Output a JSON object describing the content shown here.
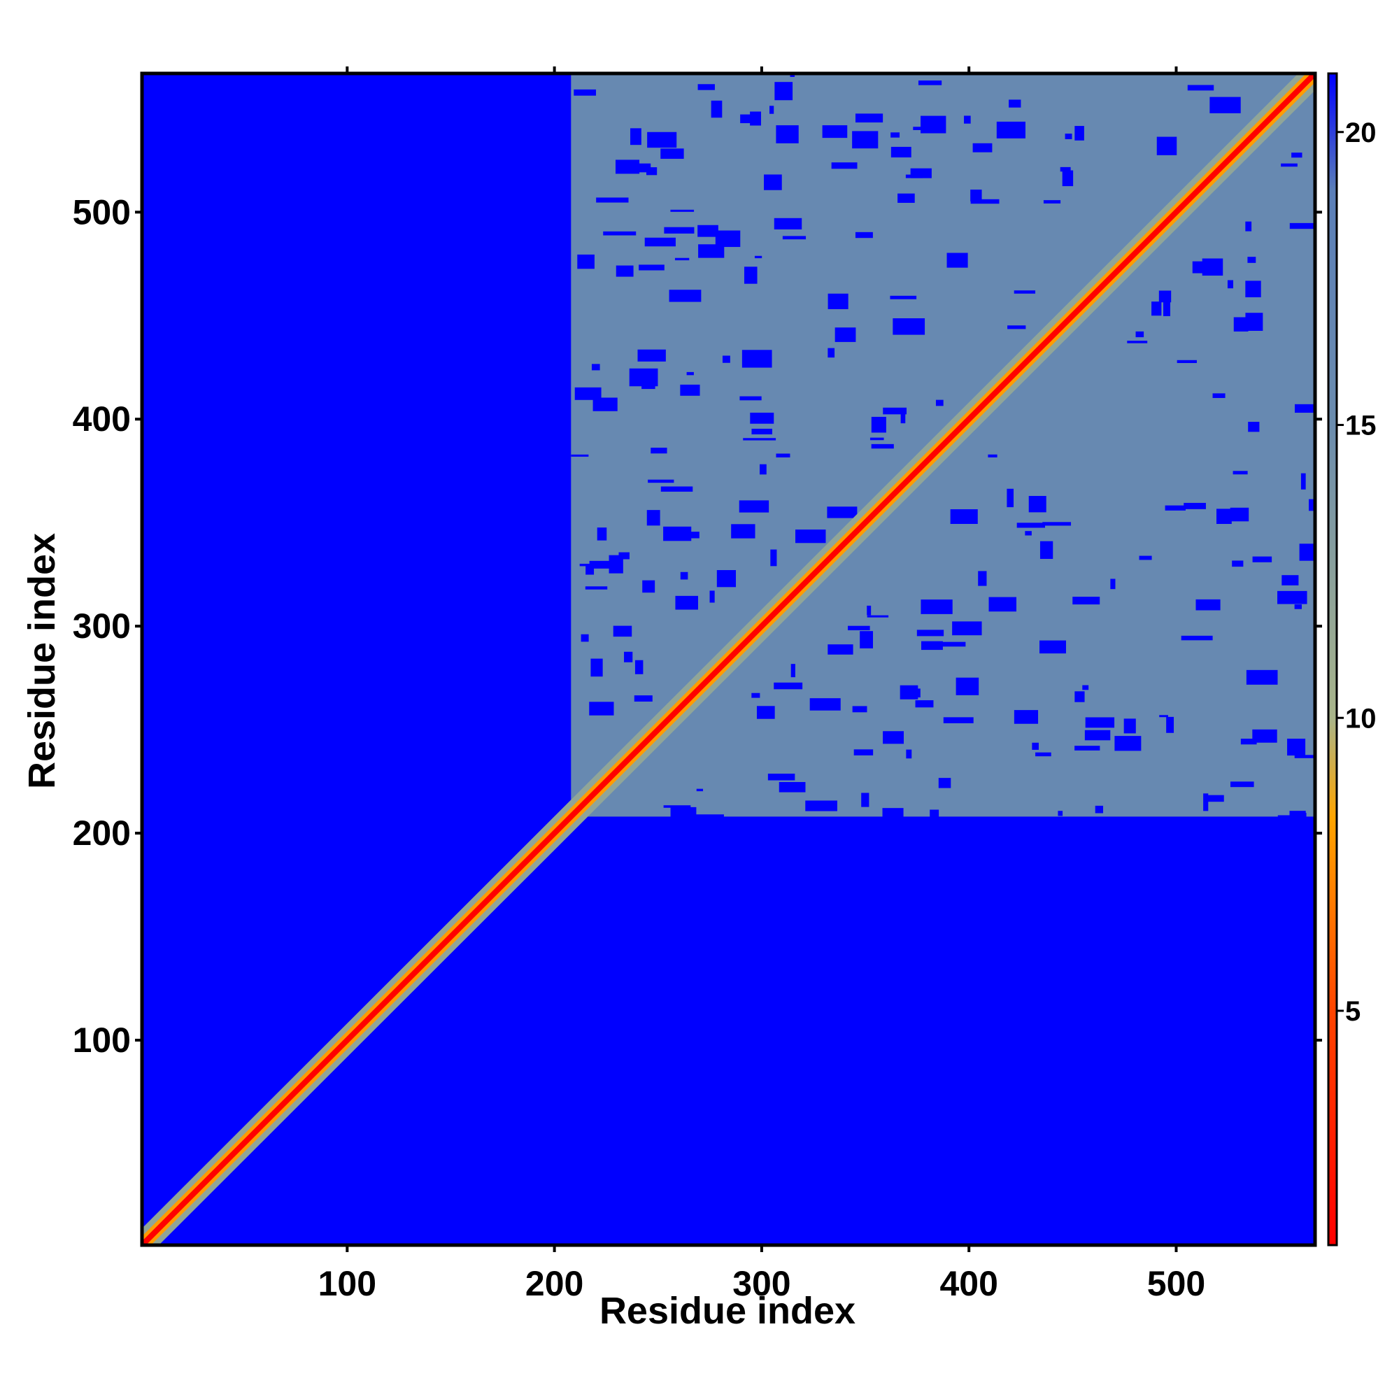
{
  "chart_data": {
    "type": "heatmap",
    "title": "",
    "xlabel": "Residue index",
    "ylabel": "Residue index",
    "xlim": [
      1,
      567
    ],
    "ylim": [
      1,
      567
    ],
    "x_ticks": [
      100,
      200,
      300,
      400,
      500
    ],
    "y_ticks": [
      100,
      200,
      300,
      400,
      500
    ],
    "grid": false,
    "description_values": {
      "diagonal_distance": 0,
      "masked_region_value": 21,
      "masked_regions": [
        {
          "x": [
            1,
            208
          ],
          "y": [
            1,
            567
          ]
        },
        {
          "x": [
            208,
            567
          ],
          "y": [
            1,
            208
          ]
        }
      ],
      "contact_map_region": {
        "x": [
          208,
          567
        ],
        "y": [
          208,
          567
        ]
      }
    },
    "colorbar": {
      "min": 1,
      "max": 21,
      "ticks": [
        5,
        10,
        15,
        20
      ],
      "stops": [
        {
          "value": 1,
          "color": "#ff0000"
        },
        {
          "value": 5,
          "color": "#ff4500"
        },
        {
          "value": 8.3,
          "color": "#ffa500"
        },
        {
          "value": 10,
          "color": "#a9b58a"
        },
        {
          "value": 15,
          "color": "#6b8cae"
        },
        {
          "value": 19,
          "color": "#5b7fb8"
        },
        {
          "value": 21,
          "color": "#0000ff"
        }
      ]
    }
  }
}
